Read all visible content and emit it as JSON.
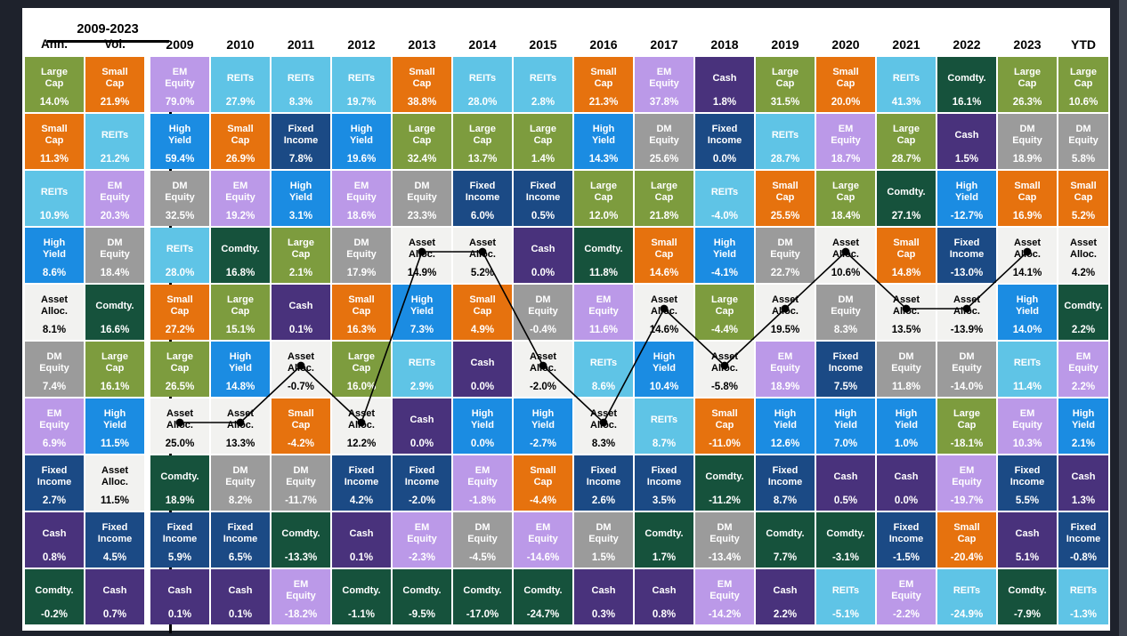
{
  "colors": {
    "page_background": "#1e222c",
    "panel_background": "#ffffff",
    "right_edge_strip": "#3f4550",
    "divider": "#000000",
    "overlay_line": "#000000"
  },
  "header": {
    "period_label": "2009-2023"
  },
  "asset_classes": {
    "large_cap": {
      "label": "Large Cap",
      "color": "#7D9C3E",
      "text": "#ffffff"
    },
    "small_cap": {
      "label": "Small Cap",
      "color": "#E6720E",
      "text": "#ffffff"
    },
    "reits": {
      "label": "REITs",
      "color": "#5FC4E6",
      "text": "#ffffff"
    },
    "em_equity": {
      "label": "EM Equity",
      "color": "#BB99E8",
      "text": "#ffffff"
    },
    "dm_equity": {
      "label": "DM Equity",
      "color": "#9B9B9B",
      "text": "#ffffff"
    },
    "high_yield": {
      "label": "High Yield",
      "color": "#1B8CE2",
      "text": "#ffffff"
    },
    "fixed_income": {
      "label": "Fixed Income",
      "color": "#1B4A85",
      "text": "#ffffff"
    },
    "cash": {
      "label": "Cash",
      "color": "#49327C",
      "text": "#ffffff"
    },
    "comdty": {
      "label": "Comdty.",
      "color": "#16523C",
      "text": "#ffffff"
    },
    "asset_alloc": {
      "label": "Asset Alloc.",
      "color": "#F2F2F0",
      "text": "#000000"
    }
  },
  "chart_data": {
    "type": "table",
    "column_headers": [
      "Ann.",
      "Vol.",
      "2009",
      "2010",
      "2011",
      "2012",
      "2013",
      "2014",
      "2015",
      "2016",
      "2017",
      "2018",
      "2019",
      "2020",
      "2021",
      "2022",
      "2023",
      "YTD"
    ],
    "columns": [
      {
        "header": "Ann.",
        "cells": [
          {
            "asset": "large_cap",
            "value": "14.0%"
          },
          {
            "asset": "small_cap",
            "value": "11.3%"
          },
          {
            "asset": "reits",
            "value": "10.9%"
          },
          {
            "asset": "high_yield",
            "value": "8.6%"
          },
          {
            "asset": "asset_alloc",
            "value": "8.1%"
          },
          {
            "asset": "dm_equity",
            "value": "7.4%"
          },
          {
            "asset": "em_equity",
            "value": "6.9%"
          },
          {
            "asset": "fixed_income",
            "value": "2.7%"
          },
          {
            "asset": "cash",
            "value": "0.8%"
          },
          {
            "asset": "comdty",
            "value": "-0.2%"
          }
        ]
      },
      {
        "header": "Vol.",
        "cells": [
          {
            "asset": "small_cap",
            "value": "21.9%"
          },
          {
            "asset": "reits",
            "value": "21.2%"
          },
          {
            "asset": "em_equity",
            "value": "20.3%"
          },
          {
            "asset": "dm_equity",
            "value": "18.4%"
          },
          {
            "asset": "comdty",
            "value": "16.6%"
          },
          {
            "asset": "large_cap",
            "value": "16.1%"
          },
          {
            "asset": "high_yield",
            "value": "11.5%"
          },
          {
            "asset": "asset_alloc",
            "value": "11.5%"
          },
          {
            "asset": "fixed_income",
            "value": "4.5%"
          },
          {
            "asset": "cash",
            "value": "0.7%"
          }
        ]
      },
      {
        "header": "2009",
        "cells": [
          {
            "asset": "em_equity",
            "value": "79.0%"
          },
          {
            "asset": "high_yield",
            "value": "59.4%"
          },
          {
            "asset": "dm_equity",
            "value": "32.5%"
          },
          {
            "asset": "reits",
            "value": "28.0%"
          },
          {
            "asset": "small_cap",
            "value": "27.2%"
          },
          {
            "asset": "large_cap",
            "value": "26.5%"
          },
          {
            "asset": "asset_alloc",
            "value": "25.0%"
          },
          {
            "asset": "comdty",
            "value": "18.9%"
          },
          {
            "asset": "fixed_income",
            "value": "5.9%"
          },
          {
            "asset": "cash",
            "value": "0.1%"
          }
        ]
      },
      {
        "header": "2010",
        "cells": [
          {
            "asset": "reits",
            "value": "27.9%"
          },
          {
            "asset": "small_cap",
            "value": "26.9%"
          },
          {
            "asset": "em_equity",
            "value": "19.2%"
          },
          {
            "asset": "comdty",
            "value": "16.8%"
          },
          {
            "asset": "large_cap",
            "value": "15.1%"
          },
          {
            "asset": "high_yield",
            "value": "14.8%"
          },
          {
            "asset": "asset_alloc",
            "value": "13.3%"
          },
          {
            "asset": "dm_equity",
            "value": "8.2%"
          },
          {
            "asset": "fixed_income",
            "value": "6.5%"
          },
          {
            "asset": "cash",
            "value": "0.1%"
          }
        ]
      },
      {
        "header": "2011",
        "cells": [
          {
            "asset": "reits",
            "value": "8.3%"
          },
          {
            "asset": "fixed_income",
            "value": "7.8%"
          },
          {
            "asset": "high_yield",
            "value": "3.1%"
          },
          {
            "asset": "large_cap",
            "value": "2.1%"
          },
          {
            "asset": "cash",
            "value": "0.1%"
          },
          {
            "asset": "asset_alloc",
            "value": "-0.7%"
          },
          {
            "asset": "small_cap",
            "value": "-4.2%"
          },
          {
            "asset": "dm_equity",
            "value": "-11.7%"
          },
          {
            "asset": "comdty",
            "value": "-13.3%"
          },
          {
            "asset": "em_equity",
            "value": "-18.2%"
          }
        ]
      },
      {
        "header": "2012",
        "cells": [
          {
            "asset": "reits",
            "value": "19.7%"
          },
          {
            "asset": "high_yield",
            "value": "19.6%"
          },
          {
            "asset": "em_equity",
            "value": "18.6%"
          },
          {
            "asset": "dm_equity",
            "value": "17.9%"
          },
          {
            "asset": "small_cap",
            "value": "16.3%"
          },
          {
            "asset": "large_cap",
            "value": "16.0%"
          },
          {
            "asset": "asset_alloc",
            "value": "12.2%"
          },
          {
            "asset": "fixed_income",
            "value": "4.2%"
          },
          {
            "asset": "cash",
            "value": "0.1%"
          },
          {
            "asset": "comdty",
            "value": "-1.1%"
          }
        ]
      },
      {
        "header": "2013",
        "cells": [
          {
            "asset": "small_cap",
            "value": "38.8%"
          },
          {
            "asset": "large_cap",
            "value": "32.4%"
          },
          {
            "asset": "dm_equity",
            "value": "23.3%"
          },
          {
            "asset": "asset_alloc",
            "value": "14.9%"
          },
          {
            "asset": "high_yield",
            "value": "7.3%"
          },
          {
            "asset": "reits",
            "value": "2.9%"
          },
          {
            "asset": "cash",
            "value": "0.0%"
          },
          {
            "asset": "fixed_income",
            "value": "-2.0%"
          },
          {
            "asset": "em_equity",
            "value": "-2.3%"
          },
          {
            "asset": "comdty",
            "value": "-9.5%"
          }
        ]
      },
      {
        "header": "2014",
        "cells": [
          {
            "asset": "reits",
            "value": "28.0%"
          },
          {
            "asset": "large_cap",
            "value": "13.7%"
          },
          {
            "asset": "fixed_income",
            "value": "6.0%"
          },
          {
            "asset": "asset_alloc",
            "value": "5.2%"
          },
          {
            "asset": "small_cap",
            "value": "4.9%"
          },
          {
            "asset": "cash",
            "value": "0.0%"
          },
          {
            "asset": "high_yield",
            "value": "0.0%"
          },
          {
            "asset": "em_equity",
            "value": "-1.8%"
          },
          {
            "asset": "dm_equity",
            "value": "-4.5%"
          },
          {
            "asset": "comdty",
            "value": "-17.0%"
          }
        ]
      },
      {
        "header": "2015",
        "cells": [
          {
            "asset": "reits",
            "value": "2.8%"
          },
          {
            "asset": "large_cap",
            "value": "1.4%"
          },
          {
            "asset": "fixed_income",
            "value": "0.5%"
          },
          {
            "asset": "cash",
            "value": "0.0%"
          },
          {
            "asset": "dm_equity",
            "value": "-0.4%"
          },
          {
            "asset": "asset_alloc",
            "value": "-2.0%"
          },
          {
            "asset": "high_yield",
            "value": "-2.7%"
          },
          {
            "asset": "small_cap",
            "value": "-4.4%"
          },
          {
            "asset": "em_equity",
            "value": "-14.6%"
          },
          {
            "asset": "comdty",
            "value": "-24.7%"
          }
        ]
      },
      {
        "header": "2016",
        "cells": [
          {
            "asset": "small_cap",
            "value": "21.3%"
          },
          {
            "asset": "high_yield",
            "value": "14.3%"
          },
          {
            "asset": "large_cap",
            "value": "12.0%"
          },
          {
            "asset": "comdty",
            "value": "11.8%"
          },
          {
            "asset": "em_equity",
            "value": "11.6%"
          },
          {
            "asset": "reits",
            "value": "8.6%"
          },
          {
            "asset": "asset_alloc",
            "value": "8.3%"
          },
          {
            "asset": "fixed_income",
            "value": "2.6%"
          },
          {
            "asset": "dm_equity",
            "value": "1.5%"
          },
          {
            "asset": "cash",
            "value": "0.3%"
          }
        ]
      },
      {
        "header": "2017",
        "cells": [
          {
            "asset": "em_equity",
            "value": "37.8%"
          },
          {
            "asset": "dm_equity",
            "value": "25.6%"
          },
          {
            "asset": "large_cap",
            "value": "21.8%"
          },
          {
            "asset": "small_cap",
            "value": "14.6%"
          },
          {
            "asset": "asset_alloc",
            "value": "14.6%"
          },
          {
            "asset": "high_yield",
            "value": "10.4%"
          },
          {
            "asset": "reits",
            "value": "8.7%"
          },
          {
            "asset": "fixed_income",
            "value": "3.5%"
          },
          {
            "asset": "comdty",
            "value": "1.7%"
          },
          {
            "asset": "cash",
            "value": "0.8%"
          }
        ]
      },
      {
        "header": "2018",
        "cells": [
          {
            "asset": "cash",
            "value": "1.8%"
          },
          {
            "asset": "fixed_income",
            "value": "0.0%"
          },
          {
            "asset": "reits",
            "value": "-4.0%"
          },
          {
            "asset": "high_yield",
            "value": "-4.1%"
          },
          {
            "asset": "large_cap",
            "value": "-4.4%"
          },
          {
            "asset": "asset_alloc",
            "value": "-5.8%"
          },
          {
            "asset": "small_cap",
            "value": "-11.0%"
          },
          {
            "asset": "comdty",
            "value": "-11.2%"
          },
          {
            "asset": "dm_equity",
            "value": "-13.4%"
          },
          {
            "asset": "em_equity",
            "value": "-14.2%"
          }
        ]
      },
      {
        "header": "2019",
        "cells": [
          {
            "asset": "large_cap",
            "value": "31.5%"
          },
          {
            "asset": "reits",
            "value": "28.7%"
          },
          {
            "asset": "small_cap",
            "value": "25.5%"
          },
          {
            "asset": "dm_equity",
            "value": "22.7%"
          },
          {
            "asset": "asset_alloc",
            "value": "19.5%"
          },
          {
            "asset": "em_equity",
            "value": "18.9%"
          },
          {
            "asset": "high_yield",
            "value": "12.6%"
          },
          {
            "asset": "fixed_income",
            "value": "8.7%"
          },
          {
            "asset": "comdty",
            "value": "7.7%"
          },
          {
            "asset": "cash",
            "value": "2.2%"
          }
        ]
      },
      {
        "header": "2020",
        "cells": [
          {
            "asset": "small_cap",
            "value": "20.0%"
          },
          {
            "asset": "em_equity",
            "value": "18.7%"
          },
          {
            "asset": "large_cap",
            "value": "18.4%"
          },
          {
            "asset": "asset_alloc",
            "value": "10.6%"
          },
          {
            "asset": "dm_equity",
            "value": "8.3%"
          },
          {
            "asset": "fixed_income",
            "value": "7.5%"
          },
          {
            "asset": "high_yield",
            "value": "7.0%"
          },
          {
            "asset": "cash",
            "value": "0.5%"
          },
          {
            "asset": "comdty",
            "value": "-3.1%"
          },
          {
            "asset": "reits",
            "value": "-5.1%"
          }
        ]
      },
      {
        "header": "2021",
        "cells": [
          {
            "asset": "reits",
            "value": "41.3%"
          },
          {
            "asset": "large_cap",
            "value": "28.7%"
          },
          {
            "asset": "comdty",
            "value": "27.1%"
          },
          {
            "asset": "small_cap",
            "value": "14.8%"
          },
          {
            "asset": "asset_alloc",
            "value": "13.5%"
          },
          {
            "asset": "dm_equity",
            "value": "11.8%"
          },
          {
            "asset": "high_yield",
            "value": "1.0%"
          },
          {
            "asset": "cash",
            "value": "0.0%"
          },
          {
            "asset": "fixed_income",
            "value": "-1.5%"
          },
          {
            "asset": "em_equity",
            "value": "-2.2%"
          }
        ]
      },
      {
        "header": "2022",
        "cells": [
          {
            "asset": "comdty",
            "value": "16.1%"
          },
          {
            "asset": "cash",
            "value": "1.5%"
          },
          {
            "asset": "high_yield",
            "value": "-12.7%"
          },
          {
            "asset": "fixed_income",
            "value": "-13.0%"
          },
          {
            "asset": "asset_alloc",
            "value": "-13.9%"
          },
          {
            "asset": "dm_equity",
            "value": "-14.0%"
          },
          {
            "asset": "large_cap",
            "value": "-18.1%"
          },
          {
            "asset": "em_equity",
            "value": "-19.7%"
          },
          {
            "asset": "small_cap",
            "value": "-20.4%"
          },
          {
            "asset": "reits",
            "value": "-24.9%"
          }
        ]
      },
      {
        "header": "2023",
        "cells": [
          {
            "asset": "large_cap",
            "value": "26.3%"
          },
          {
            "asset": "dm_equity",
            "value": "18.9%"
          },
          {
            "asset": "small_cap",
            "value": "16.9%"
          },
          {
            "asset": "asset_alloc",
            "value": "14.1%"
          },
          {
            "asset": "high_yield",
            "value": "14.0%"
          },
          {
            "asset": "reits",
            "value": "11.4%"
          },
          {
            "asset": "em_equity",
            "value": "10.3%"
          },
          {
            "asset": "fixed_income",
            "value": "5.5%"
          },
          {
            "asset": "cash",
            "value": "5.1%"
          },
          {
            "asset": "comdty",
            "value": "-7.9%"
          }
        ]
      },
      {
        "header": "YTD",
        "cells": [
          {
            "asset": "large_cap",
            "value": "10.6%"
          },
          {
            "asset": "dm_equity",
            "value": "5.8%"
          },
          {
            "asset": "small_cap",
            "value": "5.2%"
          },
          {
            "asset": "asset_alloc",
            "value": "4.2%"
          },
          {
            "asset": "comdty",
            "value": "2.2%"
          },
          {
            "asset": "em_equity",
            "value": "2.2%"
          },
          {
            "asset": "high_yield",
            "value": "2.1%"
          },
          {
            "asset": "cash",
            "value": "1.3%"
          },
          {
            "asset": "fixed_income",
            "value": "-0.8%"
          },
          {
            "asset": "reits",
            "value": "-1.3%"
          }
        ]
      }
    ],
    "overlay_line": {
      "asset": "asset_alloc",
      "dot_columns": [
        "2009",
        "2010",
        "2011",
        "2012",
        "2013",
        "2014",
        "2015",
        "2016",
        "2017",
        "2018",
        "2019",
        "2020",
        "2021",
        "2022",
        "2023"
      ]
    }
  }
}
